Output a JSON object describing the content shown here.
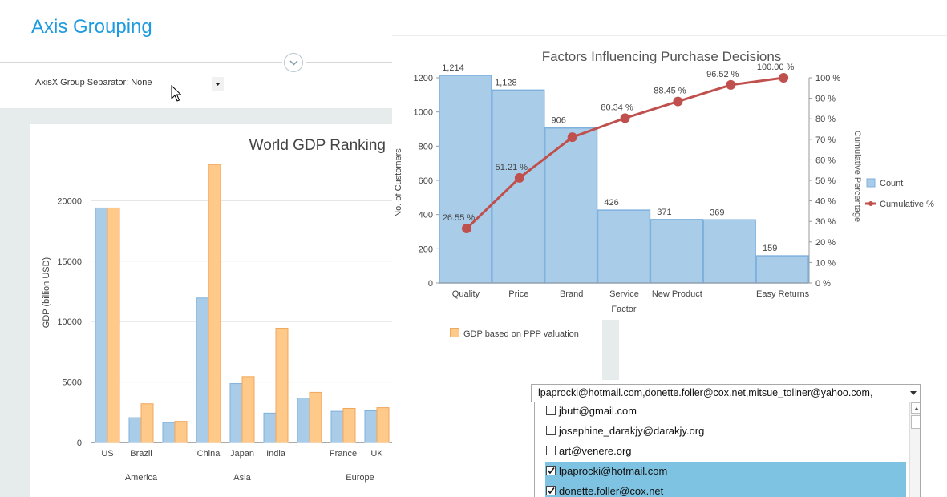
{
  "page": {
    "title": "Axis Grouping"
  },
  "settings": {
    "label": "AxisX Group Separator: None"
  },
  "legend_ppp": "GDP based on PPP valuation",
  "combo": {
    "value": "lpaprocki@hotmail.com,donette.foller@cox.net,mitsue_tollner@yahoo.com,",
    "items": [
      {
        "label": "jbutt@gmail.com",
        "checked": false
      },
      {
        "label": "josephine_darakjy@darakjy.org",
        "checked": false
      },
      {
        "label": "art@venere.org",
        "checked": false
      },
      {
        "label": "lpaprocki@hotmail.com",
        "checked": true
      },
      {
        "label": "donette.foller@cox.net",
        "checked": true
      }
    ]
  },
  "chart_data": [
    {
      "type": "bar",
      "title": "World GDP Ranking",
      "ylabel": "GDP (billion USD)",
      "ylim": [
        0,
        25000
      ],
      "yticks": [
        "0",
        "5000",
        "10000",
        "15000",
        "20000"
      ],
      "categories": [
        "US",
        "Brazil",
        "",
        "China",
        "Japan",
        "India",
        "",
        "France",
        "UK",
        "Italy"
      ],
      "groups": [
        {
          "label": "America",
          "from": 0,
          "to": 2
        },
        {
          "label": "Asia",
          "from": 3,
          "to": 5
        },
        {
          "label": "Europe",
          "from": 6,
          "to": 9
        }
      ],
      "series": [
        {
          "values": [
            19400,
            2050,
            1650,
            11950,
            4870,
            2430,
            3680,
            2580,
            2620,
            1930
          ],
          "color": "#a9cde9"
        },
        {
          "name": "GDP based on PPP valuation",
          "values": [
            19400,
            3200,
            1750,
            23000,
            5450,
            9450,
            4150,
            2820,
            2880,
            2310
          ],
          "color": "#ffc98a"
        }
      ],
      "grid": true
    },
    {
      "type": "bar",
      "title": "Factors Influencing Purchase Decisions",
      "xlabel": "Factor",
      "ylabel": "No. of Customers",
      "y2label": "Cumulative Percentage",
      "ylim": [
        0,
        1200
      ],
      "y2lim": [
        0,
        100
      ],
      "yticks": [
        "0",
        "200",
        "400",
        "600",
        "800",
        "1000",
        "1200"
      ],
      "y2ticks": [
        "0 %",
        "10 %",
        "20 %",
        "30 %",
        "40 %",
        "50 %",
        "60 %",
        "70 %",
        "80 %",
        "90 %",
        "100 %"
      ],
      "categories": [
        "Quality",
        "Price",
        "Brand",
        "Service",
        "New Product",
        "",
        "Easy Returns"
      ],
      "series": [
        {
          "name": "Count",
          "type": "bar",
          "values": [
            1214,
            1128,
            906,
            426,
            371,
            369,
            159
          ],
          "labels": [
            "1,214",
            "1,128",
            "906",
            "426",
            "371",
            "369",
            "159"
          ],
          "color": "#a9cde9"
        },
        {
          "name": "Cumulative %",
          "type": "line",
          "values": [
            26.55,
            51.21,
            71.03,
            80.34,
            88.45,
            96.52,
            100.0
          ],
          "labels": [
            "26.55 %",
            "51.21 %",
            "",
            "80.34 %",
            "88.45 %",
            "96.52 %",
            "100.00 %"
          ],
          "color": "#c0504d"
        }
      ],
      "legend": "right",
      "grid": false
    }
  ]
}
